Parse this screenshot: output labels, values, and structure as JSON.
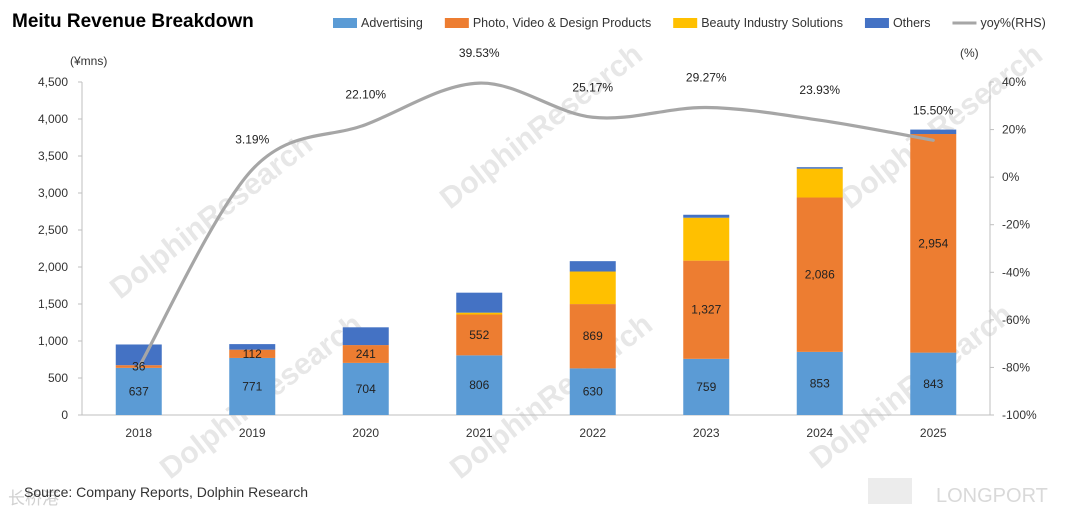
{
  "chart_data": {
    "type": "bar",
    "stacked": true,
    "title": "Meitu Revenue Breakdown",
    "y_unit_label": "(¥mns)",
    "y2_unit_label": "(%)",
    "categories": [
      "2018",
      "2019",
      "2020",
      "2021",
      "2022",
      "2023",
      "2024",
      "2025"
    ],
    "ylim": [
      0,
      4500
    ],
    "yticks": [
      "0",
      "500",
      "1,000",
      "1,500",
      "2,000",
      "2,500",
      "3,000",
      "3,500",
      "4,000",
      "4,500"
    ],
    "y2lim": [
      -100,
      40
    ],
    "y2ticks": [
      "-100%",
      "-80%",
      "-60%",
      "-40%",
      "-20%",
      "0%",
      "20%",
      "40%"
    ],
    "series": [
      {
        "name": "Advertising",
        "color": "#5B9BD5",
        "values": [
          637,
          771,
          704,
          806,
          630,
          759,
          853,
          843
        ],
        "labels": [
          "637",
          "771",
          "704",
          "806",
          "630",
          "759",
          "853",
          "843"
        ]
      },
      {
        "name": "Photo, Video & Design Products",
        "color": "#ED7D31",
        "values": [
          36,
          112,
          241,
          552,
          869,
          1327,
          2086,
          2954
        ],
        "labels": [
          "36",
          "112",
          "241",
          "552",
          "869",
          "1,327",
          "2,086",
          "2,954"
        ]
      },
      {
        "name": "Beauty Industry Solutions",
        "color": "#FFC000",
        "values": [
          0,
          0,
          0,
          25,
          440,
          580,
          390,
          0
        ],
        "labels": []
      },
      {
        "name": "Others",
        "color": "#4472C4",
        "values": [
          280,
          75,
          240,
          270,
          140,
          40,
          20,
          60
        ],
        "labels": []
      }
    ],
    "line_series": {
      "name": "yoy%(RHS)",
      "color": "#A6A6A6",
      "axis": "right",
      "values": [
        -80,
        3.19,
        22.1,
        39.53,
        25.17,
        29.27,
        23.93,
        15.5
      ],
      "labels": [
        "",
        "3.19%",
        "22.10%",
        "39.53%",
        "25.17%",
        "29.27%",
        "23.93%",
        "15.50%"
      ]
    },
    "legend_position": "top-right",
    "grid": false
  },
  "source_note": "Source: Company Reports, Dolphin Research",
  "watermarks": {
    "brand": "DolphinResearch",
    "corner_logo": "LONGPORT",
    "wechat_mark": "长桥港"
  }
}
